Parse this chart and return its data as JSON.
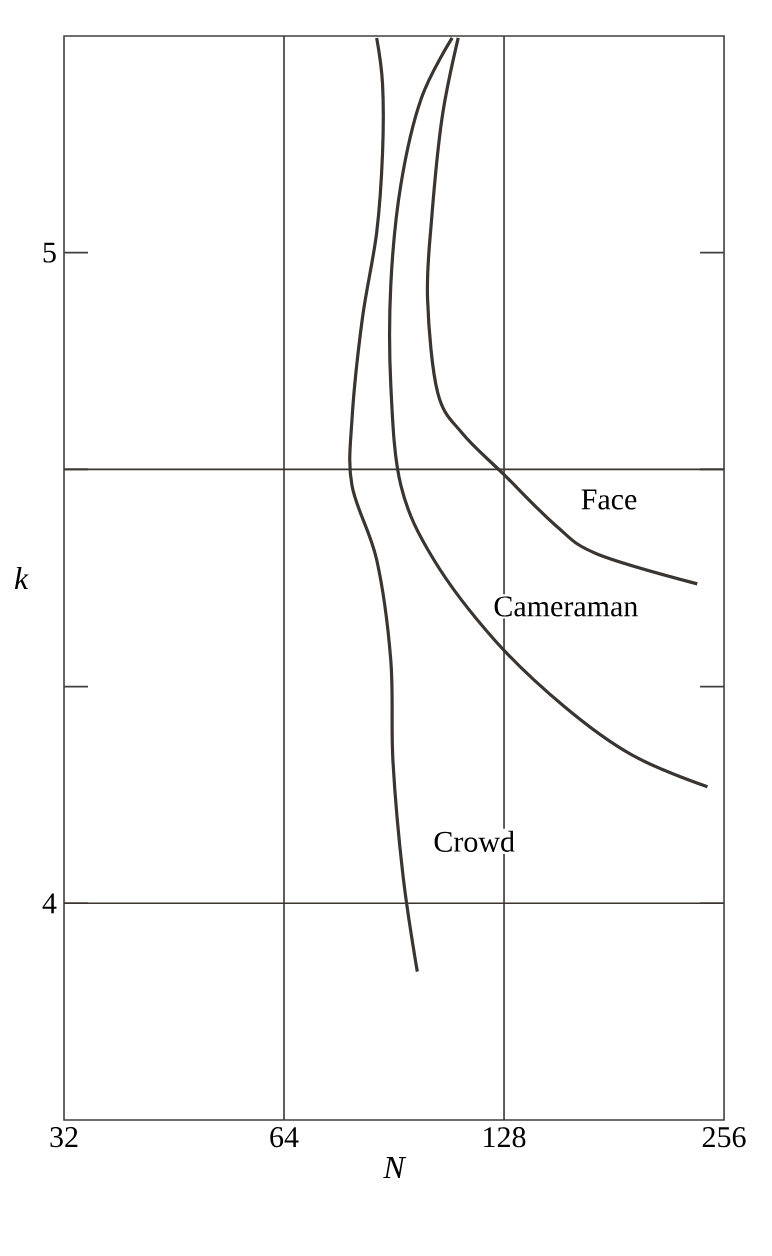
{
  "chart_data": {
    "type": "line",
    "xlabel": "N",
    "ylabel": "k",
    "log": "x",
    "xlim": [
      32,
      256
    ],
    "ylim": [
      3.667,
      5.333
    ],
    "xticks": [
      32,
      64,
      128,
      256
    ],
    "yticks": [
      4,
      {
        "value": 4.333,
        "label": null
      },
      {
        "value": 4.667,
        "label": null
      },
      5
    ],
    "ref_lines": [
      {
        "axis": "x",
        "value": 64
      },
      {
        "axis": "x",
        "value": 128
      },
      {
        "axis": "y",
        "value": 4
      },
      {
        "axis": "y",
        "value": 4.667
      }
    ],
    "grid": false,
    "marker": "none",
    "line_style": "solid",
    "series": [
      {
        "name": "Face",
        "color": "#3a3530",
        "x": [
          110.8,
          105.3,
          101.9,
          100.6,
          103.9,
          112.3,
          127.7,
          150.9,
          171.6,
          235.3
        ],
        "values": [
          5.33,
          5.207,
          5.052,
          4.929,
          4.784,
          4.722,
          4.66,
          4.58,
          4.537,
          4.491
        ]
      },
      {
        "name": "Cameraman",
        "color": "#3a3530",
        "x": [
          108.7,
          98.7,
          92.5,
          89.6,
          89.6,
          92.5,
          102.6,
          124.4,
          154.9,
          191.5,
          243
        ],
        "values": [
          5.33,
          5.238,
          5.105,
          4.951,
          4.796,
          4.642,
          4.528,
          4.404,
          4.302,
          4.228,
          4.179
        ]
      },
      {
        "name": "Crowd",
        "color": "#3a3530",
        "x": [
          85.7,
          87.3,
          87.3,
          85.7,
          81.9,
          79.3,
          79.3,
          85.7,
          89.6,
          90.2,
          93.1,
          97.4
        ],
        "values": [
          5.33,
          5.259,
          5.154,
          5.031,
          4.898,
          4.744,
          4.642,
          4.528,
          4.373,
          4.219,
          4.043,
          3.895
        ]
      }
    ]
  }
}
